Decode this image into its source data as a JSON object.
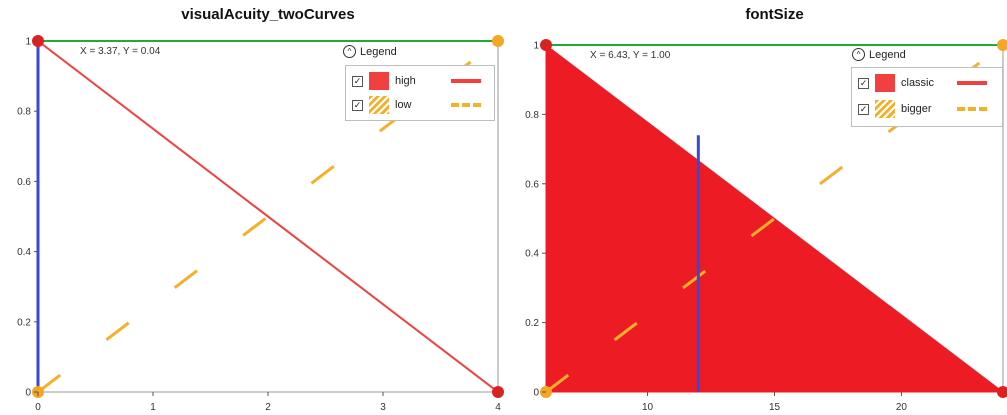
{
  "chart_data": [
    {
      "type": "line",
      "title": "visualAcuity_twoCurves",
      "xlim": [
        0,
        4
      ],
      "ylim": [
        0,
        1
      ],
      "x_ticks": [
        0,
        1,
        2,
        3,
        4
      ],
      "y_ticks": [
        0,
        0.2,
        0.4,
        0.6,
        0.8,
        1
      ],
      "series": [
        {
          "name": "high",
          "x": [
            0,
            4
          ],
          "y": [
            1,
            0
          ],
          "color": "#f24040",
          "style": "solid"
        },
        {
          "name": "low",
          "x": [
            0,
            4
          ],
          "y": [
            0,
            1
          ],
          "color": "#f5b02a",
          "style": "dashed"
        }
      ],
      "readout": "X = 3.37, Y = 0.04",
      "crosshair": {
        "x": 0,
        "y": 1
      },
      "legend": {
        "title": "Legend",
        "placement": "top-right"
      }
    },
    {
      "type": "area",
      "title": "fontSize",
      "xlim": [
        6,
        24
      ],
      "ylim": [
        0,
        1
      ],
      "x_ticks": [
        10,
        15,
        20
      ],
      "y_ticks": [
        0,
        0.2,
        0.4,
        0.6,
        0.8,
        1
      ],
      "series": [
        {
          "name": "classic",
          "x": [
            6,
            24
          ],
          "y": [
            1,
            0
          ],
          "color": "#ed1c24",
          "style": "filled"
        },
        {
          "name": "bigger",
          "x": [
            6,
            24
          ],
          "y": [
            0,
            1
          ],
          "color": "#f5b02a",
          "style": "dashed"
        }
      ],
      "readout": "X = 6.43, Y = 1.00",
      "crosshair": {
        "x": 12,
        "y": 1
      },
      "legend": {
        "title": "Legend",
        "placement": "top-right"
      }
    }
  ],
  "colors": {
    "crosshair_v": "#3b47d6",
    "crosshair_h": "#22aa33",
    "marker_red": "#e02020",
    "marker_orange": "#f5a623"
  }
}
